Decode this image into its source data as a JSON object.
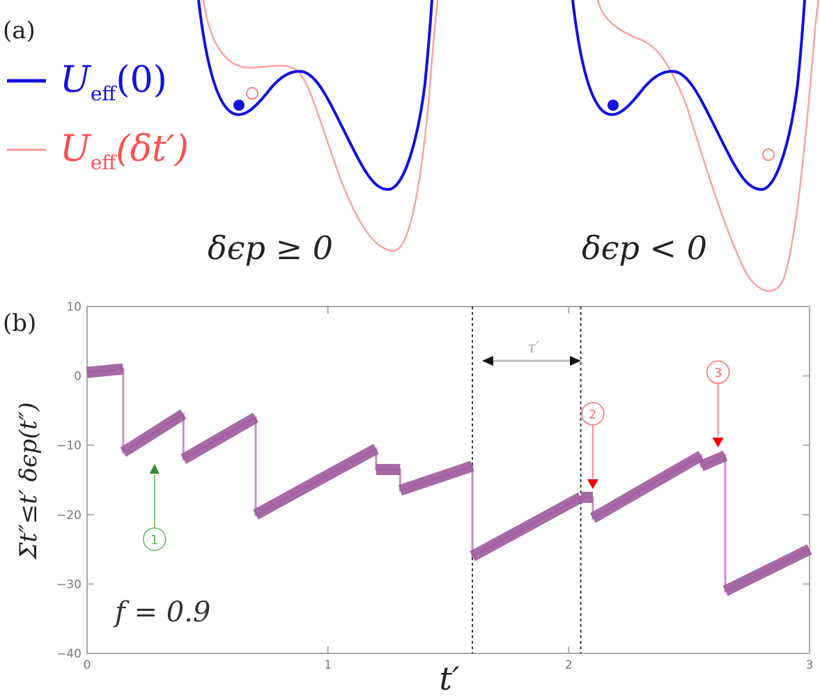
{
  "panel_a": {
    "label": "(a)",
    "legend": [
      {
        "text": "U",
        "sub": "eff",
        "arg": "(0)",
        "color": "#1010e0"
      },
      {
        "text": "U",
        "sub": "eff",
        "arg": "(δt′)",
        "color": "#ff6a6a"
      }
    ],
    "captions": [
      "δϵp ≥ 0",
      "δϵp < 0"
    ]
  },
  "panel_b": {
    "label": "(b)",
    "annotation": "f = 0.9",
    "tau_label": "τ′",
    "markers": [
      {
        "id": "1",
        "color": "#5cb85c"
      },
      {
        "id": "2",
        "color": "#ff6a6a"
      },
      {
        "id": "3",
        "color": "#ff6a6a"
      }
    ]
  },
  "chart_data": [
    {
      "type": "line",
      "title": "",
      "series": [
        {
          "name": "Ueff(0)",
          "color": "#1010e0"
        },
        {
          "name": "Ueff(δt′)",
          "color": "#ff6a6a"
        }
      ]
    },
    {
      "type": "line",
      "title": "",
      "xlabel": "t′",
      "ylabel": "Σt″≤t′ δϵp(t″)",
      "xlim": [
        0,
        3
      ],
      "ylim": [
        -40,
        10
      ],
      "xticks": [
        "0",
        "1",
        "2",
        "3"
      ],
      "yticks": [
        "10",
        "0",
        "−10",
        "−20",
        "−30",
        "−40"
      ],
      "grid": false,
      "vlines": [
        1.6,
        2.05
      ],
      "series": [
        {
          "name": "",
          "color": "#9e5a9e",
          "points": [
            [
              0.0,
              0.5
            ],
            [
              0.15,
              1.0
            ],
            [
              0.15,
              -11.0
            ],
            [
              0.4,
              -5.5
            ],
            [
              0.4,
              -12.0
            ],
            [
              0.7,
              -6.0
            ],
            [
              0.7,
              -20.0
            ],
            [
              1.2,
              -10.5
            ],
            [
              1.2,
              -13.5
            ],
            [
              1.3,
              -13.5
            ],
            [
              1.3,
              -16.5
            ],
            [
              1.6,
              -13.0
            ],
            [
              1.6,
              -26.0
            ],
            [
              2.05,
              -17.5
            ],
            [
              2.1,
              -17.5
            ],
            [
              2.1,
              -20.5
            ],
            [
              2.55,
              -11.5
            ],
            [
              2.55,
              -13.0
            ],
            [
              2.65,
              -11.5
            ],
            [
              2.65,
              -31.0
            ],
            [
              3.0,
              -25.0
            ]
          ]
        }
      ],
      "markers": [
        {
          "label": "1",
          "x": 0.28,
          "y": -13.5,
          "shape": "triangle-up",
          "color": "#2e8b2e"
        },
        {
          "label": "2",
          "x": 2.1,
          "y": -15.5,
          "shape": "triangle-down",
          "color": "#ee0000"
        },
        {
          "label": "3",
          "x": 2.62,
          "y": -9.5,
          "shape": "triangle-down",
          "color": "#ee0000"
        }
      ]
    }
  ]
}
